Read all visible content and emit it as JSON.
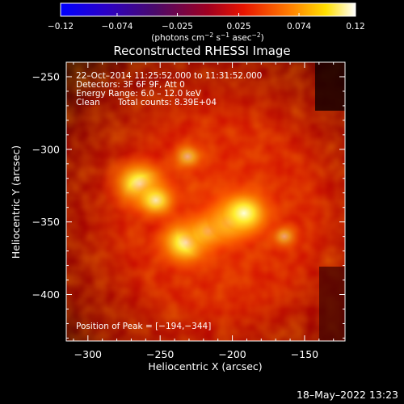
{
  "chart_data": {
    "type": "heatmap",
    "title": "Reconstructed RHESSI Image",
    "xlabel": "Heliocentric X (arcsec)",
    "ylabel": "Heliocentric Y (arcsec)",
    "xlim": [
      -315,
      -122
    ],
    "ylim": [
      -432,
      -240
    ],
    "xticks": [
      -300,
      -250,
      -200,
      -150
    ],
    "yticks": [
      -250,
      -300,
      -350,
      -400
    ],
    "colorbar": {
      "min": -0.12,
      "max": 0.12,
      "ticks": [
        -0.12,
        -0.074,
        -0.025,
        0.025,
        0.074,
        0.12
      ],
      "tick_labels": [
        "−0.12",
        "−0.074",
        "−0.025",
        "0.025",
        "0.074",
        "0.12"
      ],
      "colormap": "blue-purple-red-yellow-white",
      "unit_base": "(photons cm",
      "unit_exp1": "−2",
      "unit_mid": " s",
      "unit_exp2": "−1",
      "unit_mid2": " asec",
      "unit_exp3": "−2",
      "unit_end": ")"
    },
    "annotations": {
      "time_range": "22–Oct–2014 11:25:52.000 to 11:31:52.000",
      "detectors": "Detectors: 3F 6F 9F, Att 0",
      "energy": "Energy Range: 6.0 – 12.0 keV",
      "method": "Clean",
      "counts": "Total counts: 8.39E+04",
      "peak": "Position of Peak = [−194,−344]"
    },
    "sources": [
      {
        "x": -264,
        "y": -324,
        "intensity": 1.0
      },
      {
        "x": -253,
        "y": -335,
        "intensity": 0.65
      },
      {
        "x": -232,
        "y": -364,
        "intensity": 1.0
      },
      {
        "x": -216,
        "y": -356,
        "intensity": 0.7
      },
      {
        "x": -202,
        "y": -350,
        "intensity": 0.9
      },
      {
        "x": -192,
        "y": -344,
        "intensity": 1.0
      },
      {
        "x": -231,
        "y": -305,
        "intensity": 0.35
      },
      {
        "x": -164,
        "y": -360,
        "intensity": 0.25
      }
    ],
    "peak": {
      "x": -194,
      "y": -344
    }
  },
  "footer_date": "18–May–2022 13:23"
}
